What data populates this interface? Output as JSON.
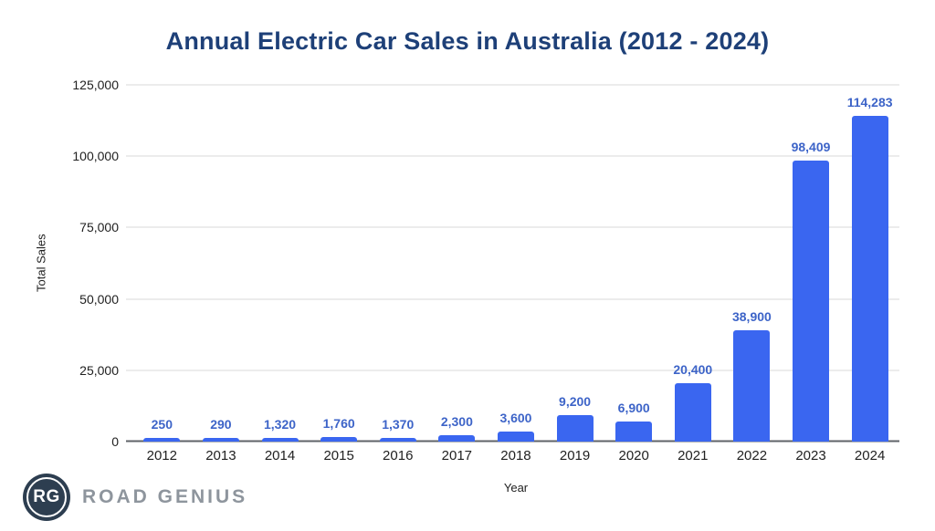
{
  "title": "Annual Electric Car Sales in Australia (2012 - 2024)",
  "logo": {
    "monogram": "RG",
    "text": "ROAD GENIUS"
  },
  "colors": {
    "bar": "#3a66f0",
    "data_label": "#3d64c8",
    "title": "#1e4078",
    "gridline": "#d9d9d9",
    "axis_line": "#5f6368",
    "logo_circle": "#2d3e50",
    "logo_text": "#8e959d"
  },
  "chart_data": {
    "type": "bar",
    "title": "Annual Electric Car Sales in Australia (2012 - 2024)",
    "xlabel": "Year",
    "ylabel": "Total Sales",
    "categories": [
      "2012",
      "2013",
      "2014",
      "2015",
      "2016",
      "2017",
      "2018",
      "2019",
      "2020",
      "2021",
      "2022",
      "2023",
      "2024"
    ],
    "values": [
      250,
      290,
      1320,
      1760,
      1370,
      2300,
      3600,
      9200,
      6900,
      20400,
      38900,
      98409,
      114283
    ],
    "value_labels": [
      "250",
      "290",
      "1,320",
      "1,760",
      "1,370",
      "2,300",
      "3,600",
      "9,200",
      "6,900",
      "20,400",
      "38,900",
      "98,409",
      "114,283"
    ],
    "ylim": [
      0,
      125000
    ],
    "yticks": [
      0,
      25000,
      50000,
      75000,
      100000,
      125000
    ],
    "ytick_labels": [
      "0",
      "25,000",
      "50,000",
      "75,000",
      "100,000",
      "125,000"
    ],
    "grid": true,
    "legend": false,
    "bar_color": "#3a66f0",
    "data_label_color": "#3d64c8"
  }
}
